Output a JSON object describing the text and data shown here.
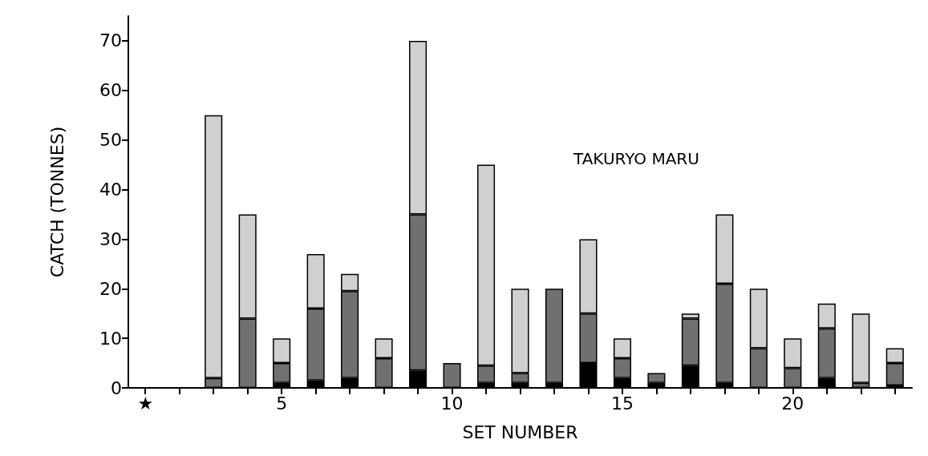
{
  "chart_data": {
    "type": "bar",
    "stacked": true,
    "xlabel": "SET NUMBER",
    "ylabel": "CATCH (TONNES)",
    "annotations": [
      "TAKURYO MARU"
    ],
    "categories": [
      "★",
      null,
      null,
      null,
      "5",
      null,
      null,
      null,
      null,
      "10",
      null,
      null,
      null,
      null,
      "15",
      null,
      null,
      null,
      null,
      "20",
      null,
      null,
      null
    ],
    "series": [
      {
        "color": "#000000",
        "values": [
          0,
          0,
          0,
          0,
          1,
          1.5,
          2,
          0,
          3.5,
          0,
          1,
          1,
          1,
          5,
          2,
          1,
          4.5,
          1,
          0,
          0,
          2,
          0,
          0.5
        ]
      },
      {
        "color": "#707070",
        "values": [
          0,
          0,
          2,
          14,
          4,
          14.5,
          17.5,
          6,
          31.5,
          5,
          3.5,
          2,
          19,
          10,
          4,
          2,
          9.5,
          20,
          8,
          4,
          10,
          1,
          4.5
        ]
      },
      {
        "color": "#d0d0d0",
        "values": [
          0,
          0,
          53,
          21,
          5,
          11,
          3.5,
          4,
          35,
          0,
          40.5,
          17,
          0,
          15,
          4,
          0,
          1,
          14,
          12,
          6,
          5,
          14,
          3
        ]
      }
    ],
    "ylim": [
      0,
      75
    ],
    "yticks": [
      0,
      10,
      20,
      30,
      40,
      50,
      60,
      70
    ],
    "grid": false
  }
}
